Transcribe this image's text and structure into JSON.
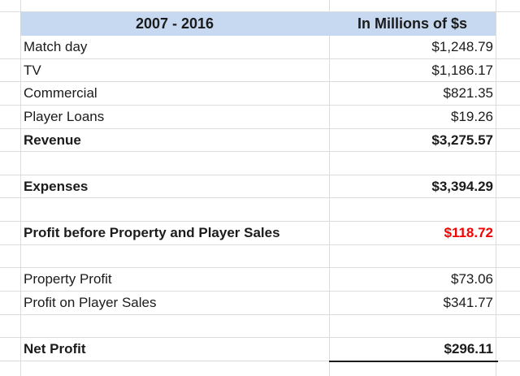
{
  "sheet": {
    "header": {
      "period": "2007 - 2016",
      "units": "In Millions of $s"
    },
    "rows": [
      {
        "label": "Match day",
        "value": "$1,248.79"
      },
      {
        "label": "TV",
        "value": "$1,186.17"
      },
      {
        "label": "Commercial",
        "value": "$821.35"
      },
      {
        "label": "Player Loans",
        "value": "$19.26"
      },
      {
        "label": "Revenue",
        "value": "$3,275.57",
        "bold": true
      },
      {
        "label": "",
        "value": ""
      },
      {
        "label": "Expenses",
        "value": "$3,394.29",
        "bold": true
      },
      {
        "label": "",
        "value": ""
      },
      {
        "label": "Profit before Property and Player Sales",
        "value": "$118.72",
        "bold": true,
        "value_red": true
      },
      {
        "label": "",
        "value": ""
      },
      {
        "label": "Property Profit",
        "value": "$73.06"
      },
      {
        "label": "Profit on Player Sales",
        "value": "$341.77"
      },
      {
        "label": "",
        "value": ""
      },
      {
        "label": "Net Profit",
        "value": "$296.11",
        "bold": true,
        "total_border": true
      },
      {
        "label": "",
        "value": ""
      }
    ],
    "colors": {
      "header_fill": "#c6d9f1",
      "gridline": "#dcdcdc",
      "text": "#1b1b1b",
      "red_value": "#f80000",
      "total_border": "#1b1b1b"
    }
  }
}
